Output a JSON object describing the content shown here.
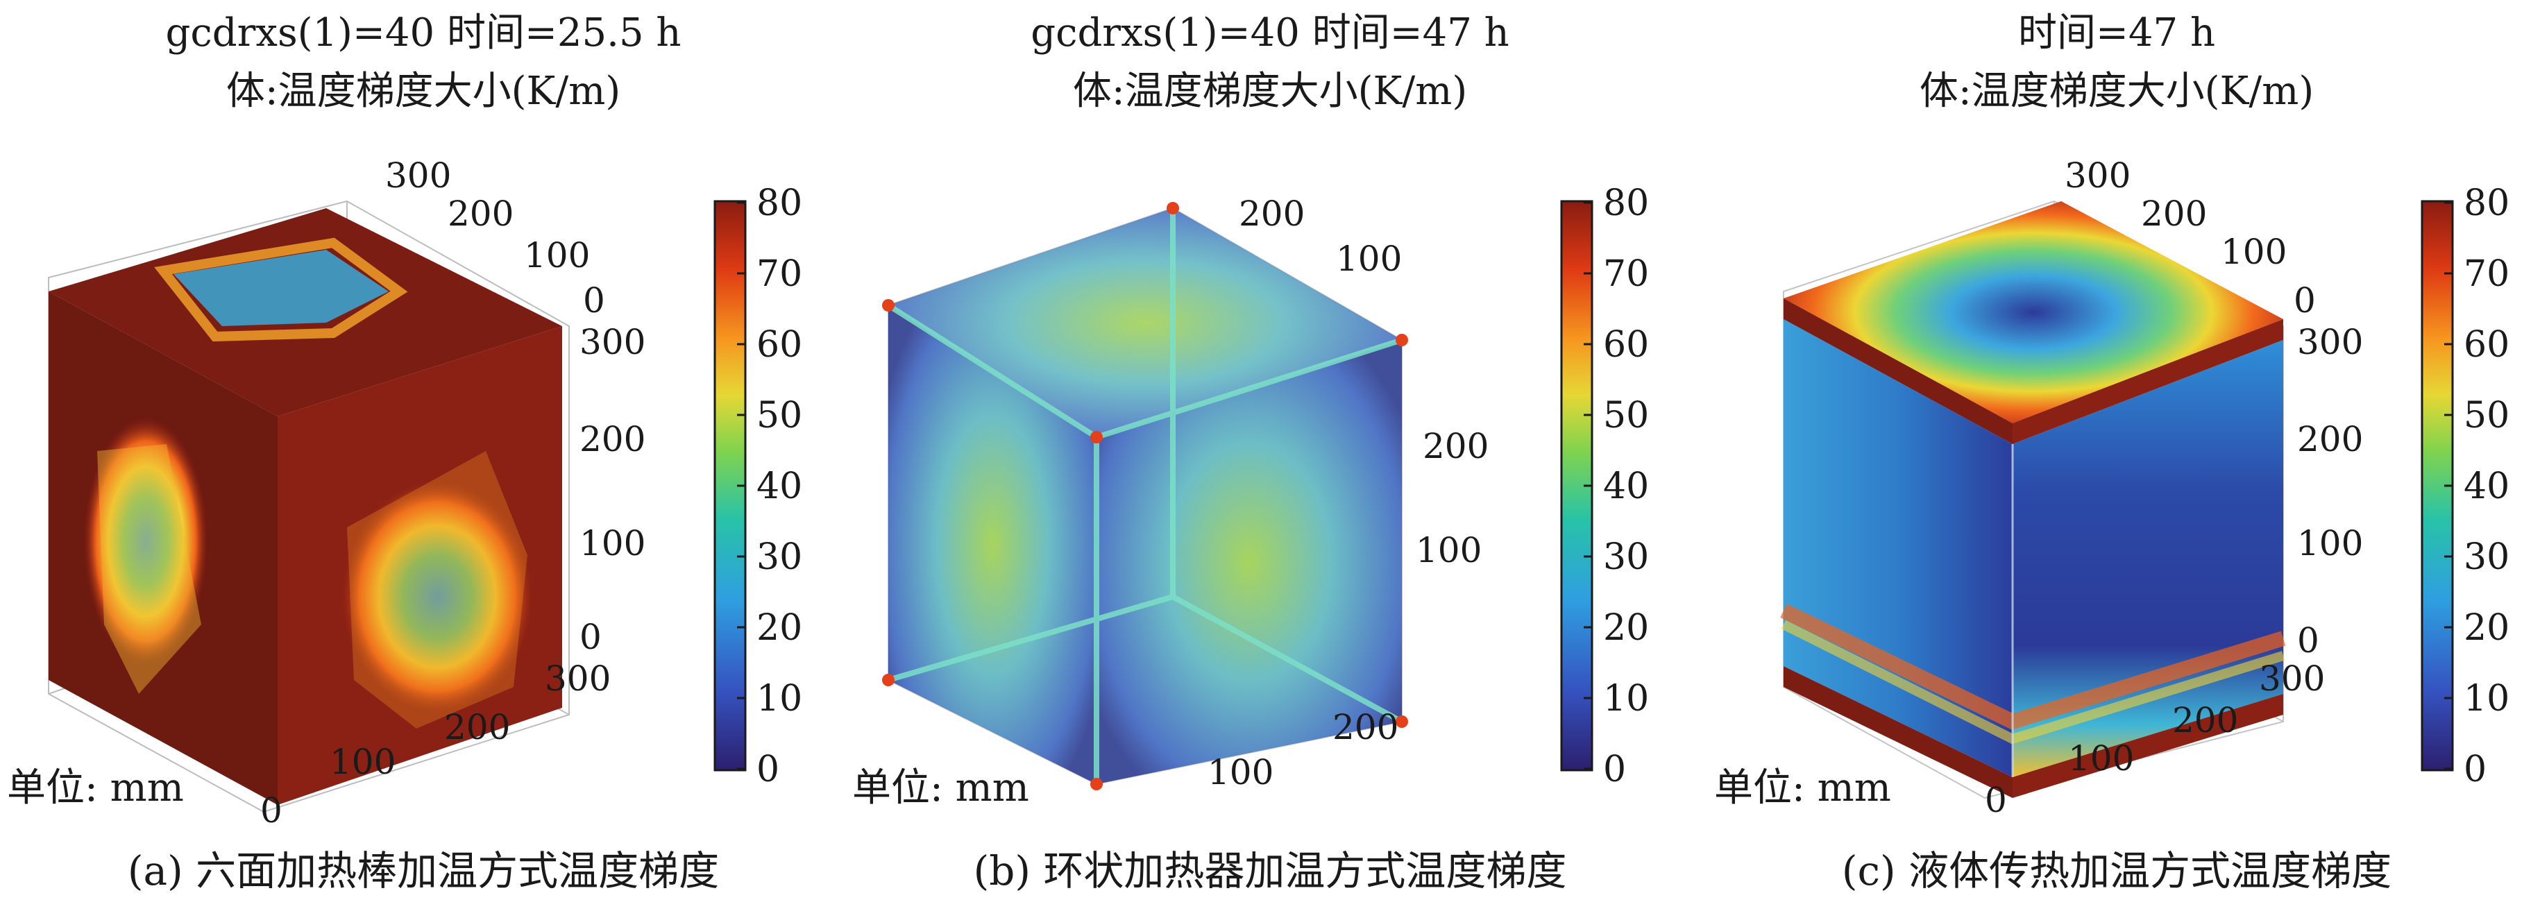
{
  "panels": [
    {
      "title1": "gcdrxs(1)=40 时间=25.5 h",
      "title2": "体:温度梯度大小(K/m)",
      "unit": "单位: mm",
      "caption": "(a) 六面加热棒加温方式温度梯度",
      "axis_top": [
        "300",
        "200",
        "100",
        "0"
      ],
      "axis_right": [
        "300",
        "200",
        "100",
        "0"
      ],
      "axis_bottom": [
        "300",
        "200",
        "100",
        "0"
      ]
    },
    {
      "title1": "gcdrxs(1)=40 时间=47 h",
      "title2": "体:温度梯度大小(K/m)",
      "unit": "单位: mm",
      "caption": "(b) 环状加热器加温方式温度梯度",
      "axis_top": [
        "200",
        "100"
      ],
      "axis_right": [
        "200",
        "100"
      ],
      "axis_bottom": [
        "200",
        "100"
      ]
    },
    {
      "title1": "时间=47 h",
      "title2": "体:温度梯度大小(K/m)",
      "unit": "单位: mm",
      "caption": "(c) 液体传热加温方式温度梯度",
      "axis_top": [
        "300",
        "200",
        "100",
        "0"
      ],
      "axis_right": [
        "300",
        "200",
        "100",
        "0"
      ],
      "axis_bottom": [
        "300",
        "200",
        "100",
        "0"
      ]
    }
  ],
  "colorbar": {
    "ticks": [
      "80",
      "70",
      "60",
      "50",
      "40",
      "30",
      "20",
      "10",
      "0"
    ],
    "colors": [
      "#2c1f6e",
      "#3553c0",
      "#2f9fe0",
      "#28c2a8",
      "#7fd34e",
      "#e6d735",
      "#f6951f",
      "#df3a13",
      "#8a1c12"
    ]
  }
}
